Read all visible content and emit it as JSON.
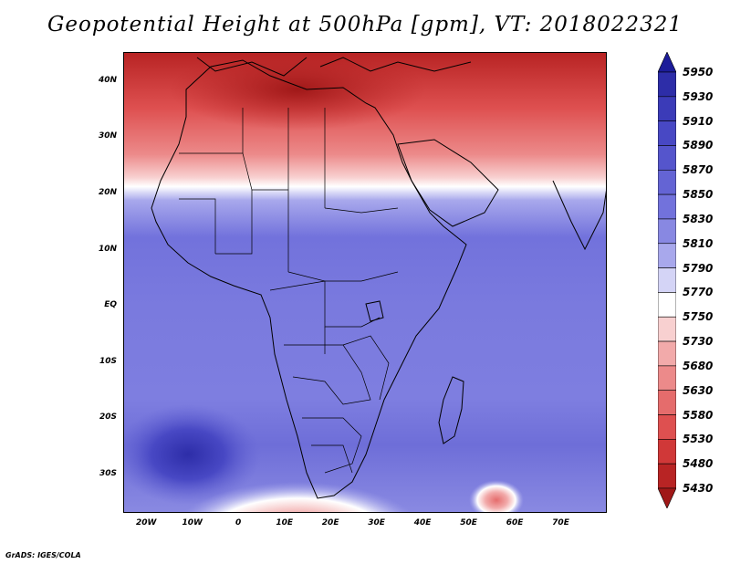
{
  "title": "Geopotential Height at 500hPa [gpm], VT: 2018022321",
  "credit": "GrADS: IGES/COLA",
  "map": {
    "lon_range": [
      -25,
      80
    ],
    "lat_range": [
      -37,
      45
    ],
    "lat_labels": [
      {
        "value": 40,
        "text": "40N"
      },
      {
        "value": 30,
        "text": "30N"
      },
      {
        "value": 20,
        "text": "20N"
      },
      {
        "value": 10,
        "text": "10N"
      },
      {
        "value": 0,
        "text": "EQ"
      },
      {
        "value": -10,
        "text": "10S"
      },
      {
        "value": -20,
        "text": "20S"
      },
      {
        "value": -30,
        "text": "30S"
      }
    ],
    "lon_labels": [
      {
        "value": -20,
        "text": "20W"
      },
      {
        "value": -10,
        "text": "10W"
      },
      {
        "value": 0,
        "text": "0"
      },
      {
        "value": 10,
        "text": "10E"
      },
      {
        "value": 20,
        "text": "20E"
      },
      {
        "value": 30,
        "text": "30E"
      },
      {
        "value": 40,
        "text": "40E"
      },
      {
        "value": 50,
        "text": "50E"
      },
      {
        "value": 60,
        "text": "60E"
      },
      {
        "value": 70,
        "text": "70E"
      }
    ]
  },
  "colorbar": {
    "levels": [
      "5950",
      "5930",
      "5910",
      "5890",
      "5870",
      "5850",
      "5830",
      "5810",
      "5790",
      "5770",
      "5750",
      "5730",
      "5680",
      "5630",
      "5580",
      "5530",
      "5480",
      "5430"
    ],
    "colors": [
      "#1c1c99",
      "#2d2da8",
      "#3b3bb8",
      "#4848c4",
      "#5555cc",
      "#6464d4",
      "#7272dc",
      "#8888e2",
      "#a8a8ec",
      "#d4d4f6",
      "#ffffff",
      "#f8d0d0",
      "#f2aaaa",
      "#ec8a8a",
      "#e56c6c",
      "#de5050",
      "#d03838",
      "#b82424",
      "#a01818"
    ]
  },
  "colors": {
    "frame": "#000000",
    "coast": "#000000"
  }
}
